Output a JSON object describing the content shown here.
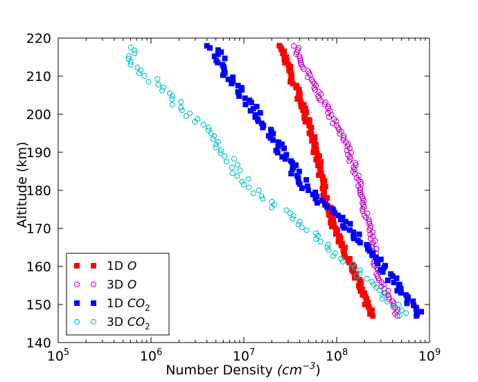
{
  "chart_data": {
    "type": "scatter",
    "xscale": "log",
    "xlim_exponents": [
      5,
      9
    ],
    "ylim": [
      140,
      220
    ],
    "xlabel_main": "Number Density",
    "xlabel_unit": "(cm",
    "xlabel_unit_exp": "−3",
    "xlabel_unit_close": ")",
    "ylabel": "Altitude (km)",
    "x_ticks": [
      {
        "base": "10",
        "exp": "5",
        "value": 5
      },
      {
        "base": "10",
        "exp": "6",
        "value": 6
      },
      {
        "base": "10",
        "exp": "7",
        "value": 7
      },
      {
        "base": "10",
        "exp": "8",
        "value": 8
      },
      {
        "base": "10",
        "exp": "9",
        "value": 9
      }
    ],
    "y_ticks": [
      140,
      150,
      160,
      170,
      180,
      190,
      200,
      210,
      220
    ],
    "legend": {
      "position": "lower-left",
      "entries": [
        {
          "prefix": "1D",
          "species": "O",
          "sub": "",
          "series": 0
        },
        {
          "prefix": "3D",
          "species": "O",
          "sub": "",
          "series": 1
        },
        {
          "prefix": "1D",
          "species": "CO",
          "sub": "2",
          "series": 2
        },
        {
          "prefix": "3D",
          "species": "CO",
          "sub": "2",
          "series": 3
        }
      ]
    },
    "series": [
      {
        "name": "1D O",
        "color": "#ff0000",
        "marker": "square",
        "profile": [
          [
            147,
            240000000.0
          ],
          [
            150,
            210000000.0
          ],
          [
            155,
            180000000.0
          ],
          [
            160,
            145000000.0
          ],
          [
            165,
            115000000.0
          ],
          [
            170,
            95000000.0
          ],
          [
            175,
            82000000.0
          ],
          [
            180,
            74000000.0
          ],
          [
            185,
            67000000.0
          ],
          [
            190,
            60000000.0
          ],
          [
            195,
            53000000.0
          ],
          [
            200,
            46000000.0
          ],
          [
            205,
            39000000.0
          ],
          [
            210,
            32000000.0
          ],
          [
            215,
            28000000.0
          ],
          [
            218,
            25000000.0
          ]
        ],
        "jitter": 0.03,
        "step": 0.5
      },
      {
        "name": "3D O",
        "color": "#bf00bf",
        "marker": "circle",
        "profile": [
          [
            147,
            460000000.0
          ],
          [
            150,
            400000000.0
          ],
          [
            155,
            320000000.0
          ],
          [
            160,
            260000000.0
          ],
          [
            165,
            250000000.0
          ],
          [
            170,
            230000000.0
          ],
          [
            175,
            200000000.0
          ],
          [
            180,
            180000000.0
          ],
          [
            185,
            160000000.0
          ],
          [
            190,
            135000000.0
          ],
          [
            195,
            110000000.0
          ],
          [
            200,
            85000000.0
          ],
          [
            205,
            65000000.0
          ],
          [
            210,
            50000000.0
          ],
          [
            215,
            40000000.0
          ],
          [
            218,
            36000000.0
          ]
        ],
        "jitter": 0.03,
        "step": 0.55
      },
      {
        "name": "1D CO2",
        "color": "#0000ff",
        "marker": "square",
        "profile": [
          [
            147,
            820000000.0
          ],
          [
            150,
            650000000.0
          ],
          [
            155,
            450000000.0
          ],
          [
            160,
            300000000.0
          ],
          [
            165,
            210000000.0
          ],
          [
            170,
            140000000.0
          ],
          [
            175,
            80000000.0
          ],
          [
            180,
            50000000.0
          ],
          [
            185,
            35000000.0
          ],
          [
            190,
            26000000.0
          ],
          [
            195,
            20000000.0
          ],
          [
            200,
            14000000.0
          ],
          [
            205,
            10000000.0
          ],
          [
            210,
            6900000.0
          ],
          [
            215,
            5500000.0
          ],
          [
            218,
            4500000.0
          ]
        ],
        "jitter": 0.06,
        "step": 0.55
      },
      {
        "name": "3D CO2",
        "color": "#00bfbf",
        "marker": "circle",
        "profile": [
          [
            147,
            520000000.0
          ],
          [
            150,
            400000000.0
          ],
          [
            155,
            260000000.0
          ],
          [
            160,
            140000000.0
          ],
          [
            165,
            80000000.0
          ],
          [
            170,
            45000000.0
          ],
          [
            175,
            24000000.0
          ],
          [
            180,
            13000000.0
          ],
          [
            185,
            8500000.0
          ],
          [
            190,
            6000000.0
          ],
          [
            195,
            4200000.0
          ],
          [
            200,
            2600000.0
          ],
          [
            205,
            1500000.0
          ],
          [
            210,
            950000.0
          ],
          [
            215,
            550000.0
          ],
          [
            218,
            750000.0
          ]
        ],
        "jitter": 0.07,
        "step": 0.75
      }
    ]
  }
}
